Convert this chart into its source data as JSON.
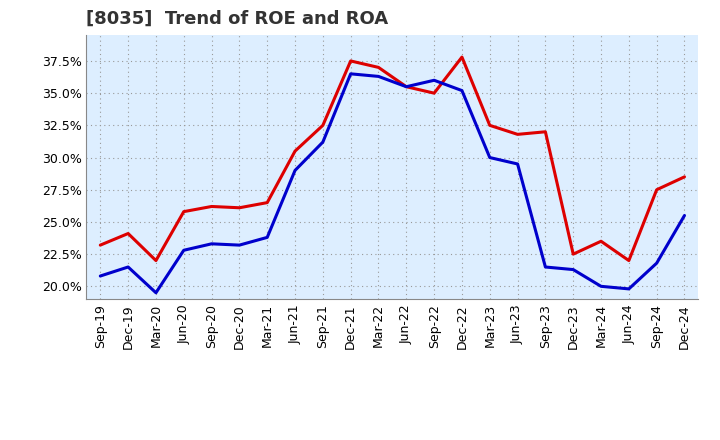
{
  "title": "[8035]  Trend of ROE and ROA",
  "labels": [
    "Sep-19",
    "Dec-19",
    "Mar-20",
    "Jun-20",
    "Sep-20",
    "Dec-20",
    "Mar-21",
    "Jun-21",
    "Sep-21",
    "Dec-21",
    "Mar-22",
    "Jun-22",
    "Sep-22",
    "Dec-22",
    "Mar-23",
    "Jun-23",
    "Sep-23",
    "Dec-23",
    "Mar-24",
    "Jun-24",
    "Sep-24",
    "Dec-24"
  ],
  "ROE": [
    23.2,
    24.1,
    22.0,
    25.8,
    26.2,
    26.1,
    26.5,
    30.5,
    32.5,
    37.5,
    37.0,
    35.5,
    35.0,
    37.8,
    32.5,
    31.8,
    32.0,
    22.5,
    23.5,
    22.0,
    27.5,
    28.5
  ],
  "ROA": [
    20.8,
    21.5,
    19.5,
    22.8,
    23.3,
    23.2,
    23.8,
    29.0,
    31.2,
    36.5,
    36.3,
    35.5,
    36.0,
    35.2,
    30.0,
    29.5,
    21.5,
    21.3,
    20.0,
    19.8,
    21.8,
    25.5
  ],
  "roe_color": "#dd0000",
  "roa_color": "#0000cc",
  "background_color": "#ffffff",
  "plot_bg_color": "#ddeeff",
  "grid_color": "#999999",
  "ylim": [
    19.0,
    39.5
  ],
  "yticks": [
    20.0,
    22.5,
    25.0,
    27.5,
    30.0,
    32.5,
    35.0,
    37.5
  ],
  "line_width": 2.2,
  "title_fontsize": 13,
  "tick_fontsize": 9,
  "legend_fontsize": 10
}
